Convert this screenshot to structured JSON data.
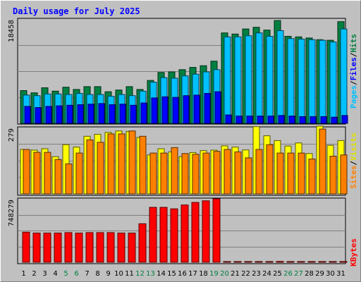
{
  "chart_data": {
    "type": "bar",
    "title": "Daily usage for July 2025",
    "categories": [
      "1",
      "2",
      "3",
      "4",
      "5",
      "6",
      "7",
      "8",
      "9",
      "10",
      "11",
      "12",
      "13",
      "14",
      "15",
      "16",
      "17",
      "18",
      "19",
      "20",
      "21",
      "22",
      "23",
      "24",
      "25",
      "26",
      "27",
      "28",
      "29",
      "30",
      "31"
    ],
    "weekend_days": [
      "5",
      "6",
      "12",
      "13",
      "19",
      "20",
      "26",
      "27"
    ],
    "panels": [
      {
        "id": "hits",
        "max_label": "18458",
        "ymax": 18458,
        "series": [
          {
            "name": "Hits",
            "color": "#008040",
            "values": [
              5800,
              5400,
              6300,
              5700,
              6400,
              6000,
              6500,
              6500,
              5600,
              5900,
              6500,
              6000,
              7600,
              9000,
              9100,
              9500,
              9900,
              10200,
              11000,
              16000,
              15800,
              16700,
              17000,
              16500,
              18200,
              15400,
              15300,
              15100,
              14800,
              14700,
              18000
            ]
          },
          {
            "name": "Files",
            "color": "#00c0ff",
            "values": [
              5000,
              4900,
              5200,
              5200,
              5100,
              5300,
              5100,
              5100,
              4800,
              5100,
              4900,
              5700,
              7300,
              8100,
              8000,
              8400,
              8700,
              9100,
              9500,
              15300,
              15300,
              15500,
              16000,
              15400,
              16400,
              15000,
              14900,
              14800,
              14700,
              14400,
              16700
            ]
          },
          {
            "name": "Pages",
            "color": "#0000ff",
            "values": [
              3000,
              2800,
              3000,
              3100,
              3200,
              3300,
              3400,
              3500,
              3300,
              3400,
              3200,
              3600,
              4500,
              4700,
              4600,
              4900,
              5000,
              5300,
              5600,
              1500,
              1300,
              1300,
              1300,
              1300,
              1400,
              1300,
              1200,
              1200,
              1200,
              1100,
              1400
            ]
          }
        ]
      },
      {
        "id": "visits",
        "max_label": "279",
        "ymax": 279,
        "series": [
          {
            "name": "Visits",
            "color": "#ffff00",
            "values": [
              185,
              182,
              188,
              155,
              205,
              195,
              240,
              248,
              256,
              262,
              260,
              235,
              162,
              188,
              175,
              155,
              172,
              180,
              182,
              200,
              195,
              183,
              280,
              242,
              222,
              199,
              212,
              168,
              282,
              202,
              222
            ]
          },
          {
            "name": "Sites",
            "color": "#ff8000",
            "values": [
              185,
              173,
              173,
              143,
              125,
              170,
              225,
              215,
              250,
              250,
              262,
              240,
              170,
              170,
              193,
              168,
              165,
              170,
              177,
              185,
              175,
              150,
              185,
              205,
              170,
              170,
              170,
              145,
              270,
              157,
              162
            ]
          }
        ]
      },
      {
        "id": "kbytes",
        "max_label": "748279",
        "ymax": 748279,
        "series": [
          {
            "name": "KBytes",
            "color": "#ff0000",
            "values": [
              355000,
              345000,
              345000,
              345000,
              350000,
              345000,
              350000,
              350000,
              350000,
              345000,
              345000,
              455000,
              648000,
              648000,
              630000,
              676000,
              706000,
              725000,
              748279,
              8000,
              6000,
              6000,
              6000,
              6000,
              10000,
              6000,
              6000,
              6000,
              6000,
              6000,
              9000
            ]
          }
        ]
      }
    ],
    "side_labels": {
      "top": [
        {
          "text": "Pages",
          "color": "#00c0ff"
        },
        {
          "text": "/",
          "color": "#000000"
        },
        {
          "text": "Files",
          "color": "#0000ff"
        },
        {
          "text": "/",
          "color": "#000000"
        },
        {
          "text": "Hits",
          "color": "#008040"
        }
      ],
      "middle": [
        {
          "text": "Sites",
          "color": "#ff8000"
        },
        {
          "text": "/",
          "color": "#000000"
        },
        {
          "text": "Visits",
          "color": "#e0e000"
        }
      ],
      "bottom": [
        {
          "text": "KBytes",
          "color": "#ff0000"
        }
      ]
    },
    "colors": {
      "title": "#0000ff",
      "weekday_tick": "#000000",
      "weekend_tick": "#008040",
      "panel_bg": "#c0c0c0",
      "grid": "#808080"
    }
  }
}
